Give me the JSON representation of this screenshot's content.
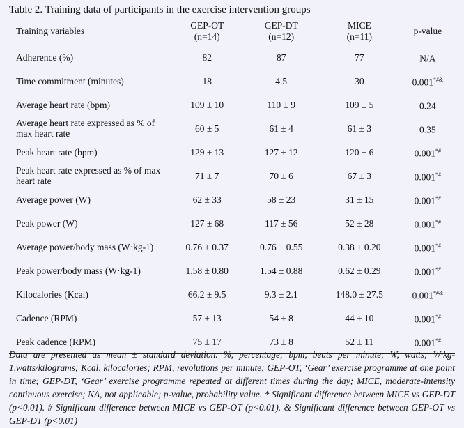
{
  "title": "Table 2. Training data of participants in the exercise intervention groups",
  "headers": {
    "var": "Training variables",
    "g1": "GEP-OT",
    "g1n": "(n=14)",
    "g2": "GEP-DT",
    "g2n": "(n=12)",
    "g3": "MICE",
    "g3n": "(n=11)",
    "p": "p-value"
  },
  "rows": [
    {
      "var": "Adherence (%)",
      "g1": "82",
      "g2": "87",
      "g3": "77",
      "p": "N/A",
      "sup": ""
    },
    {
      "var": "Time commitment (minutes)",
      "g1": "18",
      "g2": "4.5",
      "g3": "30",
      "p": "0.001",
      "sup": "*#&"
    },
    {
      "var": "Average heart rate (bpm)",
      "g1": "109 ± 10",
      "g2": "110 ± 9",
      "g3": "109 ± 5",
      "p": "0.24",
      "sup": ""
    },
    {
      "var": "Average heart rate expressed as % of max heart rate",
      "g1": "60 ± 5",
      "g2": "61 ± 4",
      "g3": "61 ± 3",
      "p": "0.35",
      "sup": ""
    },
    {
      "var": "Peak heart rate (bpm)",
      "g1": "129 ± 13",
      "g2": "127 ± 12",
      "g3": "120 ± 6",
      "p": "0.001",
      "sup": "*#"
    },
    {
      "var": "Peak heart rate expressed as % of max heart rate",
      "g1": "71 ± 7",
      "g2": "70 ± 6",
      "g3": "67 ± 3",
      "p": "0.001",
      "sup": "*#"
    },
    {
      "var": "Average power (W)",
      "g1": "62 ± 33",
      "g2": "58 ± 23",
      "g3": "31 ± 15",
      "p": "0.001",
      "sup": "*#"
    },
    {
      "var": "Peak power (W)",
      "g1": "127 ± 68",
      "g2": "117 ± 56",
      "g3": "52 ± 28",
      "p": "0.001",
      "sup": "*#"
    },
    {
      "var": "Average power/body mass (W·kg-1)",
      "g1": "0.76 ± 0.37",
      "g2": "0.76 ± 0.55",
      "g3": "0.38 ± 0.20",
      "p": "0.001",
      "sup": "*#"
    },
    {
      "var": "Peak power/body mass (W·kg-1)",
      "g1": "1.58 ± 0.80",
      "g2": "1.54 ± 0.88",
      "g3": "0.62 ± 0.29",
      "p": "0.001",
      "sup": "*#"
    },
    {
      "var": "Kilocalories (Kcal)",
      "g1": "66.2 ± 9.5",
      "g2": "9.3 ± 2.1",
      "g3": "148.0 ± 27.5",
      "p": "0.001",
      "sup": "*#&"
    },
    {
      "var": "Cadence (RPM)",
      "g1": "57 ± 13",
      "g2": "54 ± 8",
      "g3": "44 ± 10",
      "p": "0.001",
      "sup": "*#"
    },
    {
      "var": "Peak cadence (RPM)",
      "g1": "75 ± 17",
      "g2": "73 ± 8",
      "g3": "52 ± 11",
      "p": "0.001",
      "sup": "*#"
    }
  ],
  "footnote": "Data are presented as mean ± standard deviation.  %, percentage; bpm, beats per minute; W, watts; W·kg-1,watts/kilograms; Kcal, kilocalories; RPM, revolutions per minute; GEP-OT, ‘Gear’ exercise programme at one point in time; GEP-DT, ‘Gear’ exercise programme repeated at different times during the day; MICE, moderate-intensity continuous exercise; NA, not applicable; p-value, probability value. * Significant difference between MICE vs GEP-DT (p<0.01). # Significant difference between MICE vs GEP-OT (p<0.01). & Significant difference between GEP-OT vs GEP-DT (p<0.01)"
}
